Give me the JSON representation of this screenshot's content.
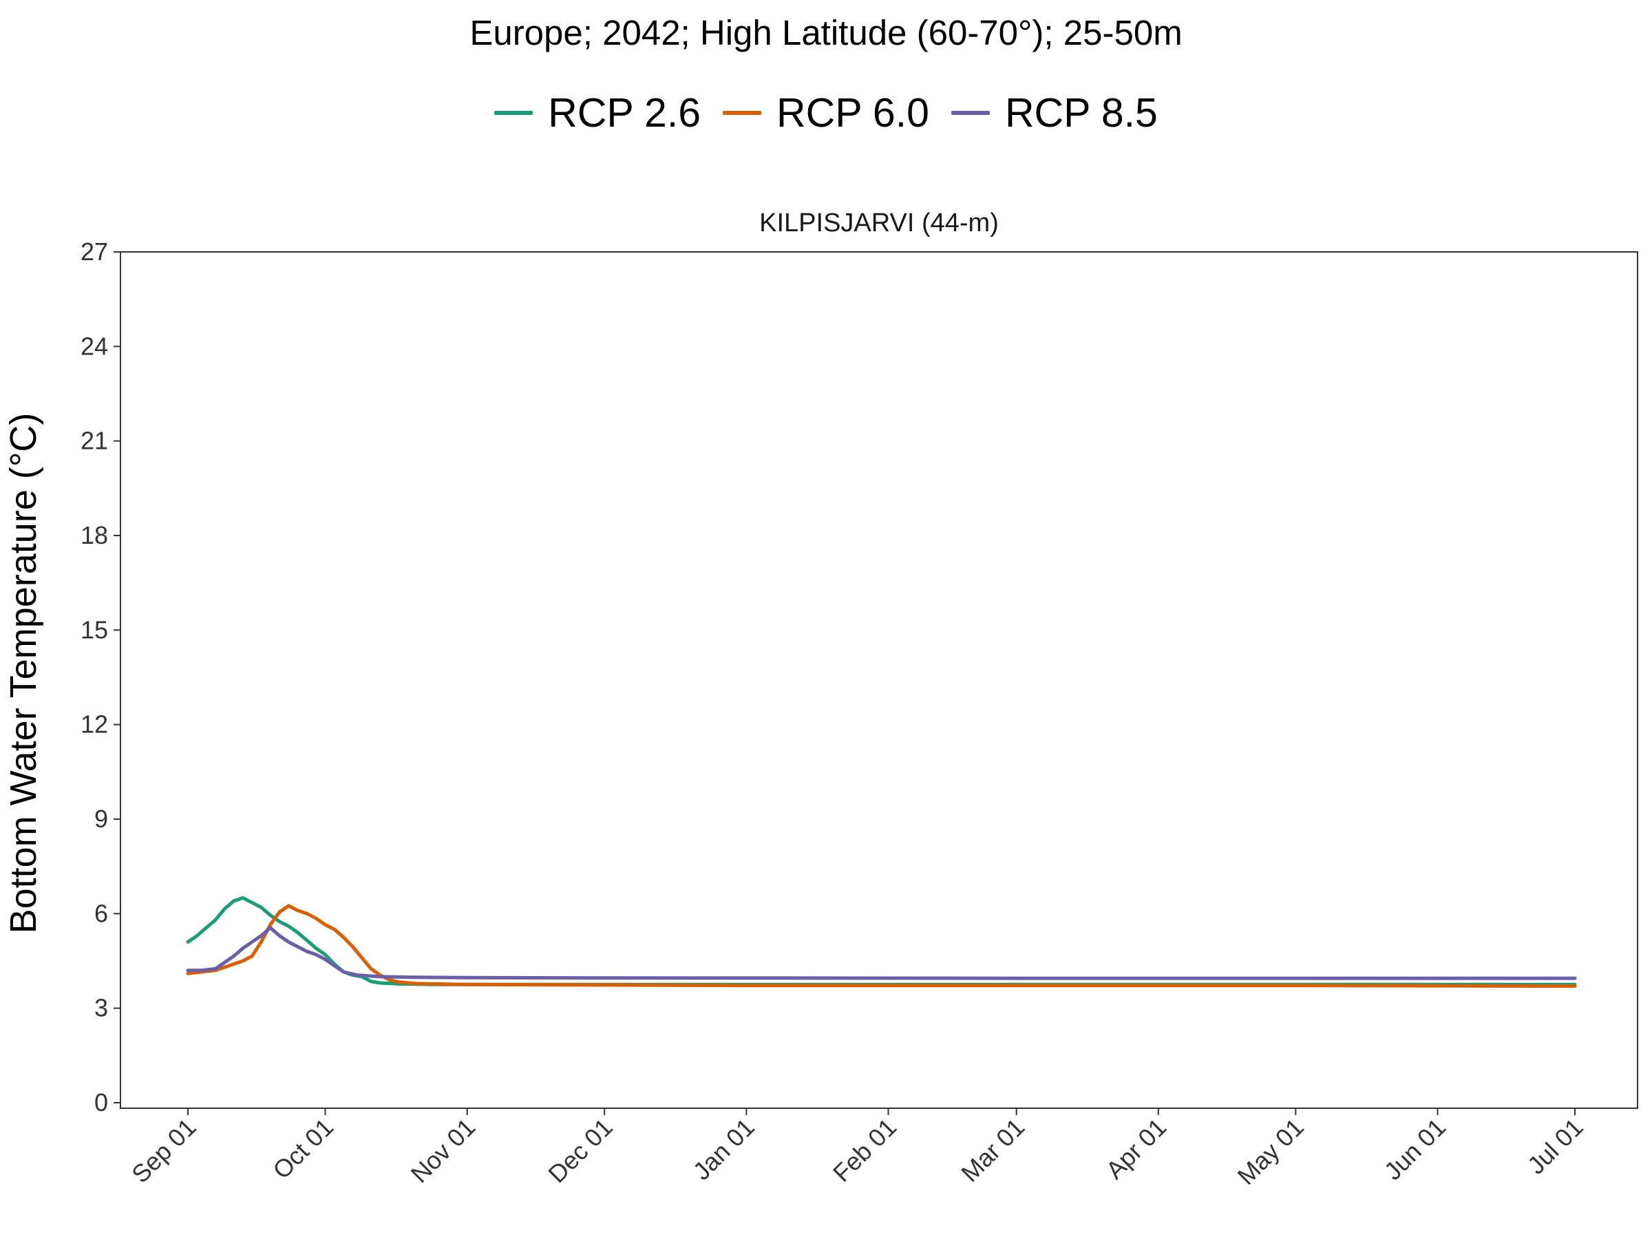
{
  "title": "Europe;  2042;  High Latitude (60-70°);  25-50m",
  "chart_data": {
    "type": "line",
    "title": "Europe;  2042;  High Latitude (60-70°);  25-50m",
    "panel_title": "KILPISJARVI (44-m)",
    "xlabel": "",
    "ylabel": "Bottom Water Temperature (°C)",
    "ylim": [
      0,
      27
    ],
    "y_ticks": [
      0,
      3,
      6,
      9,
      12,
      15,
      18,
      21,
      24,
      27
    ],
    "x_range": [
      "2042-09-01",
      "2043-07-01"
    ],
    "x_ticks": [
      {
        "date": "2042-09-01",
        "label": "Sep 01"
      },
      {
        "date": "2042-10-01",
        "label": "Oct 01"
      },
      {
        "date": "2042-11-01",
        "label": "Nov 01"
      },
      {
        "date": "2042-12-01",
        "label": "Dec 01"
      },
      {
        "date": "2043-01-01",
        "label": "Jan 01"
      },
      {
        "date": "2043-02-01",
        "label": "Feb 01"
      },
      {
        "date": "2043-03-01",
        "label": "Mar 01"
      },
      {
        "date": "2043-04-01",
        "label": "Apr 01"
      },
      {
        "date": "2043-05-01",
        "label": "May 01"
      },
      {
        "date": "2043-06-01",
        "label": "Jun 01"
      },
      {
        "date": "2043-07-01",
        "label": "Jul 01"
      }
    ],
    "grid": false,
    "legend_position": "top",
    "series": [
      {
        "name": "RCP 2.6",
        "color": "#1b9e77",
        "points": [
          [
            "2042-09-01",
            5.1
          ],
          [
            "2042-09-03",
            5.3
          ],
          [
            "2042-09-05",
            5.55
          ],
          [
            "2042-09-07",
            5.8
          ],
          [
            "2042-09-09",
            6.15
          ],
          [
            "2042-09-11",
            6.4
          ],
          [
            "2042-09-13",
            6.5
          ],
          [
            "2042-09-15",
            6.35
          ],
          [
            "2042-09-17",
            6.2
          ],
          [
            "2042-09-19",
            5.95
          ],
          [
            "2042-09-21",
            5.75
          ],
          [
            "2042-09-23",
            5.6
          ],
          [
            "2042-09-25",
            5.4
          ],
          [
            "2042-09-27",
            5.15
          ],
          [
            "2042-09-29",
            4.9
          ],
          [
            "2042-10-01",
            4.7
          ],
          [
            "2042-10-03",
            4.4
          ],
          [
            "2042-10-05",
            4.15
          ],
          [
            "2042-10-07",
            4.05
          ],
          [
            "2042-10-09",
            4.0
          ],
          [
            "2042-10-11",
            3.85
          ],
          [
            "2042-10-13",
            3.8
          ],
          [
            "2042-10-17",
            3.77
          ],
          [
            "2042-10-25",
            3.75
          ],
          [
            "2042-11-15",
            3.75
          ],
          [
            "2043-01-01",
            3.75
          ],
          [
            "2043-03-01",
            3.75
          ],
          [
            "2043-05-01",
            3.75
          ],
          [
            "2043-07-01",
            3.75
          ]
        ]
      },
      {
        "name": "RCP 6.0",
        "color": "#d95f02",
        "points": [
          [
            "2042-09-01",
            4.1
          ],
          [
            "2042-09-04",
            4.15
          ],
          [
            "2042-09-07",
            4.2
          ],
          [
            "2042-09-10",
            4.35
          ],
          [
            "2042-09-13",
            4.5
          ],
          [
            "2042-09-15",
            4.65
          ],
          [
            "2042-09-17",
            5.1
          ],
          [
            "2042-09-19",
            5.65
          ],
          [
            "2042-09-21",
            6.05
          ],
          [
            "2042-09-23",
            6.25
          ],
          [
            "2042-09-25",
            6.1
          ],
          [
            "2042-09-27",
            6.0
          ],
          [
            "2042-09-29",
            5.85
          ],
          [
            "2042-10-01",
            5.65
          ],
          [
            "2042-10-03",
            5.5
          ],
          [
            "2042-10-05",
            5.25
          ],
          [
            "2042-10-07",
            4.95
          ],
          [
            "2042-10-09",
            4.6
          ],
          [
            "2042-10-11",
            4.25
          ],
          [
            "2042-10-13",
            4.05
          ],
          [
            "2042-10-15",
            3.9
          ],
          [
            "2042-10-17",
            3.83
          ],
          [
            "2042-10-21",
            3.78
          ],
          [
            "2042-11-01",
            3.75
          ],
          [
            "2043-01-01",
            3.72
          ],
          [
            "2043-03-01",
            3.72
          ],
          [
            "2043-05-01",
            3.72
          ],
          [
            "2043-07-01",
            3.7
          ]
        ]
      },
      {
        "name": "RCP 8.5",
        "color": "#6a5ea8",
        "points": [
          [
            "2042-09-01",
            4.2
          ],
          [
            "2042-09-04",
            4.2
          ],
          [
            "2042-09-07",
            4.25
          ],
          [
            "2042-09-09",
            4.45
          ],
          [
            "2042-09-11",
            4.65
          ],
          [
            "2042-09-13",
            4.9
          ],
          [
            "2042-09-15",
            5.1
          ],
          [
            "2042-09-17",
            5.3
          ],
          [
            "2042-09-19",
            5.55
          ],
          [
            "2042-09-21",
            5.3
          ],
          [
            "2042-09-23",
            5.1
          ],
          [
            "2042-09-25",
            4.95
          ],
          [
            "2042-09-27",
            4.8
          ],
          [
            "2042-09-29",
            4.7
          ],
          [
            "2042-10-01",
            4.55
          ],
          [
            "2042-10-03",
            4.35
          ],
          [
            "2042-10-05",
            4.15
          ],
          [
            "2042-10-08",
            4.05
          ],
          [
            "2042-10-13",
            4.0
          ],
          [
            "2042-10-20",
            3.98
          ],
          [
            "2042-11-01",
            3.97
          ],
          [
            "2042-12-01",
            3.96
          ],
          [
            "2043-03-01",
            3.95
          ],
          [
            "2043-07-01",
            3.95
          ]
        ]
      }
    ]
  }
}
